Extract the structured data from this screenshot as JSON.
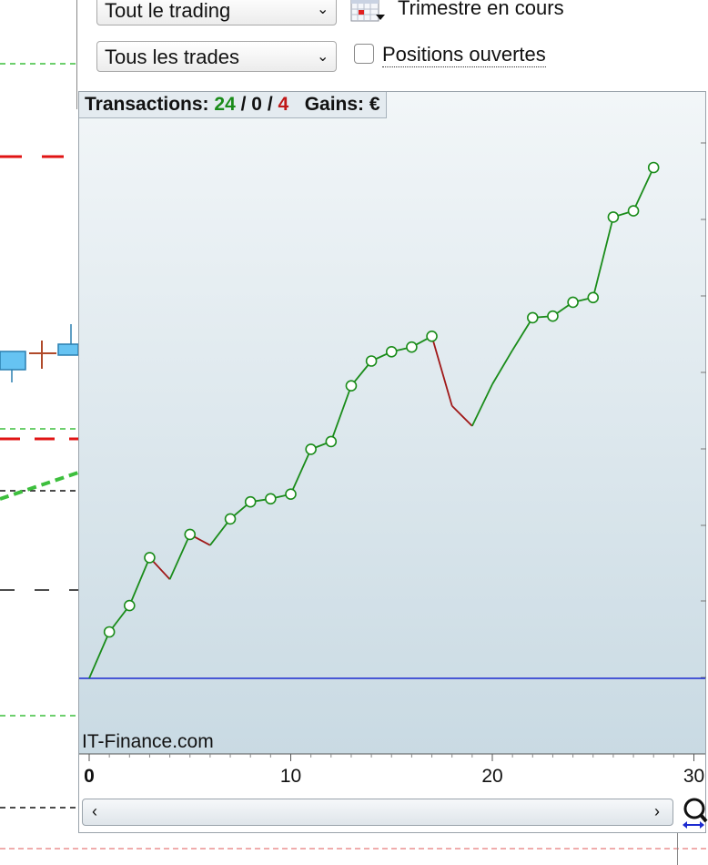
{
  "controls": {
    "period_select": "Tout le trading",
    "period_label": "Trimestre en cours",
    "trades_select": "Tous les trades",
    "open_positions_label": "Positions ouvertes",
    "open_positions_checked": false
  },
  "stats": {
    "transactions_label": "Transactions:",
    "wins": "24",
    "sep1": "/",
    "neutral": "0",
    "sep2": "/",
    "losses": "4",
    "gains_label": "Gains:",
    "currency": "€"
  },
  "colors": {
    "win": "#1a8c1a",
    "loss": "#a01818",
    "baseline": "#1c2bd0",
    "panel_top": "#f2f6f8",
    "panel_bottom": "#c9dae3"
  },
  "watermark": "IT-Finance.com",
  "chart_data": {
    "type": "line",
    "title": "",
    "xlabel": "",
    "ylabel": "",
    "xlim": [
      0,
      30
    ],
    "ylim": [
      0,
      33
    ],
    "x_ticks": [
      "0",
      "10",
      "20",
      "30"
    ],
    "baseline": 0,
    "series": [
      {
        "x": [
          0,
          1,
          2,
          3,
          4,
          5,
          6,
          7,
          8,
          9,
          10,
          11,
          12,
          13,
          14,
          15,
          16,
          17,
          18,
          19,
          20,
          21,
          22,
          23,
          24,
          25,
          26,
          27,
          28
        ],
        "values": [
          0,
          3,
          4.7,
          7.8,
          6.4,
          9.3,
          8.6,
          10.3,
          11.4,
          11.6,
          11.9,
          14.8,
          15.3,
          18.9,
          20.5,
          21.1,
          21.4,
          22.1,
          17.6,
          16.3,
          19,
          21.2,
          23.3,
          23.4,
          24.3,
          24.6,
          29.8,
          30.2,
          33
        ],
        "markers": [
          false,
          true,
          true,
          true,
          false,
          true,
          false,
          true,
          true,
          true,
          true,
          true,
          true,
          true,
          true,
          true,
          true,
          true,
          false,
          false,
          false,
          false,
          true,
          true,
          true,
          true,
          true,
          true,
          true
        ]
      }
    ]
  },
  "scrollbar": {
    "left_arrow": "‹",
    "right_arrow": "›"
  },
  "icons": {
    "calendar": "calendar-icon",
    "zoom": "magnifier-zoom-icon"
  }
}
